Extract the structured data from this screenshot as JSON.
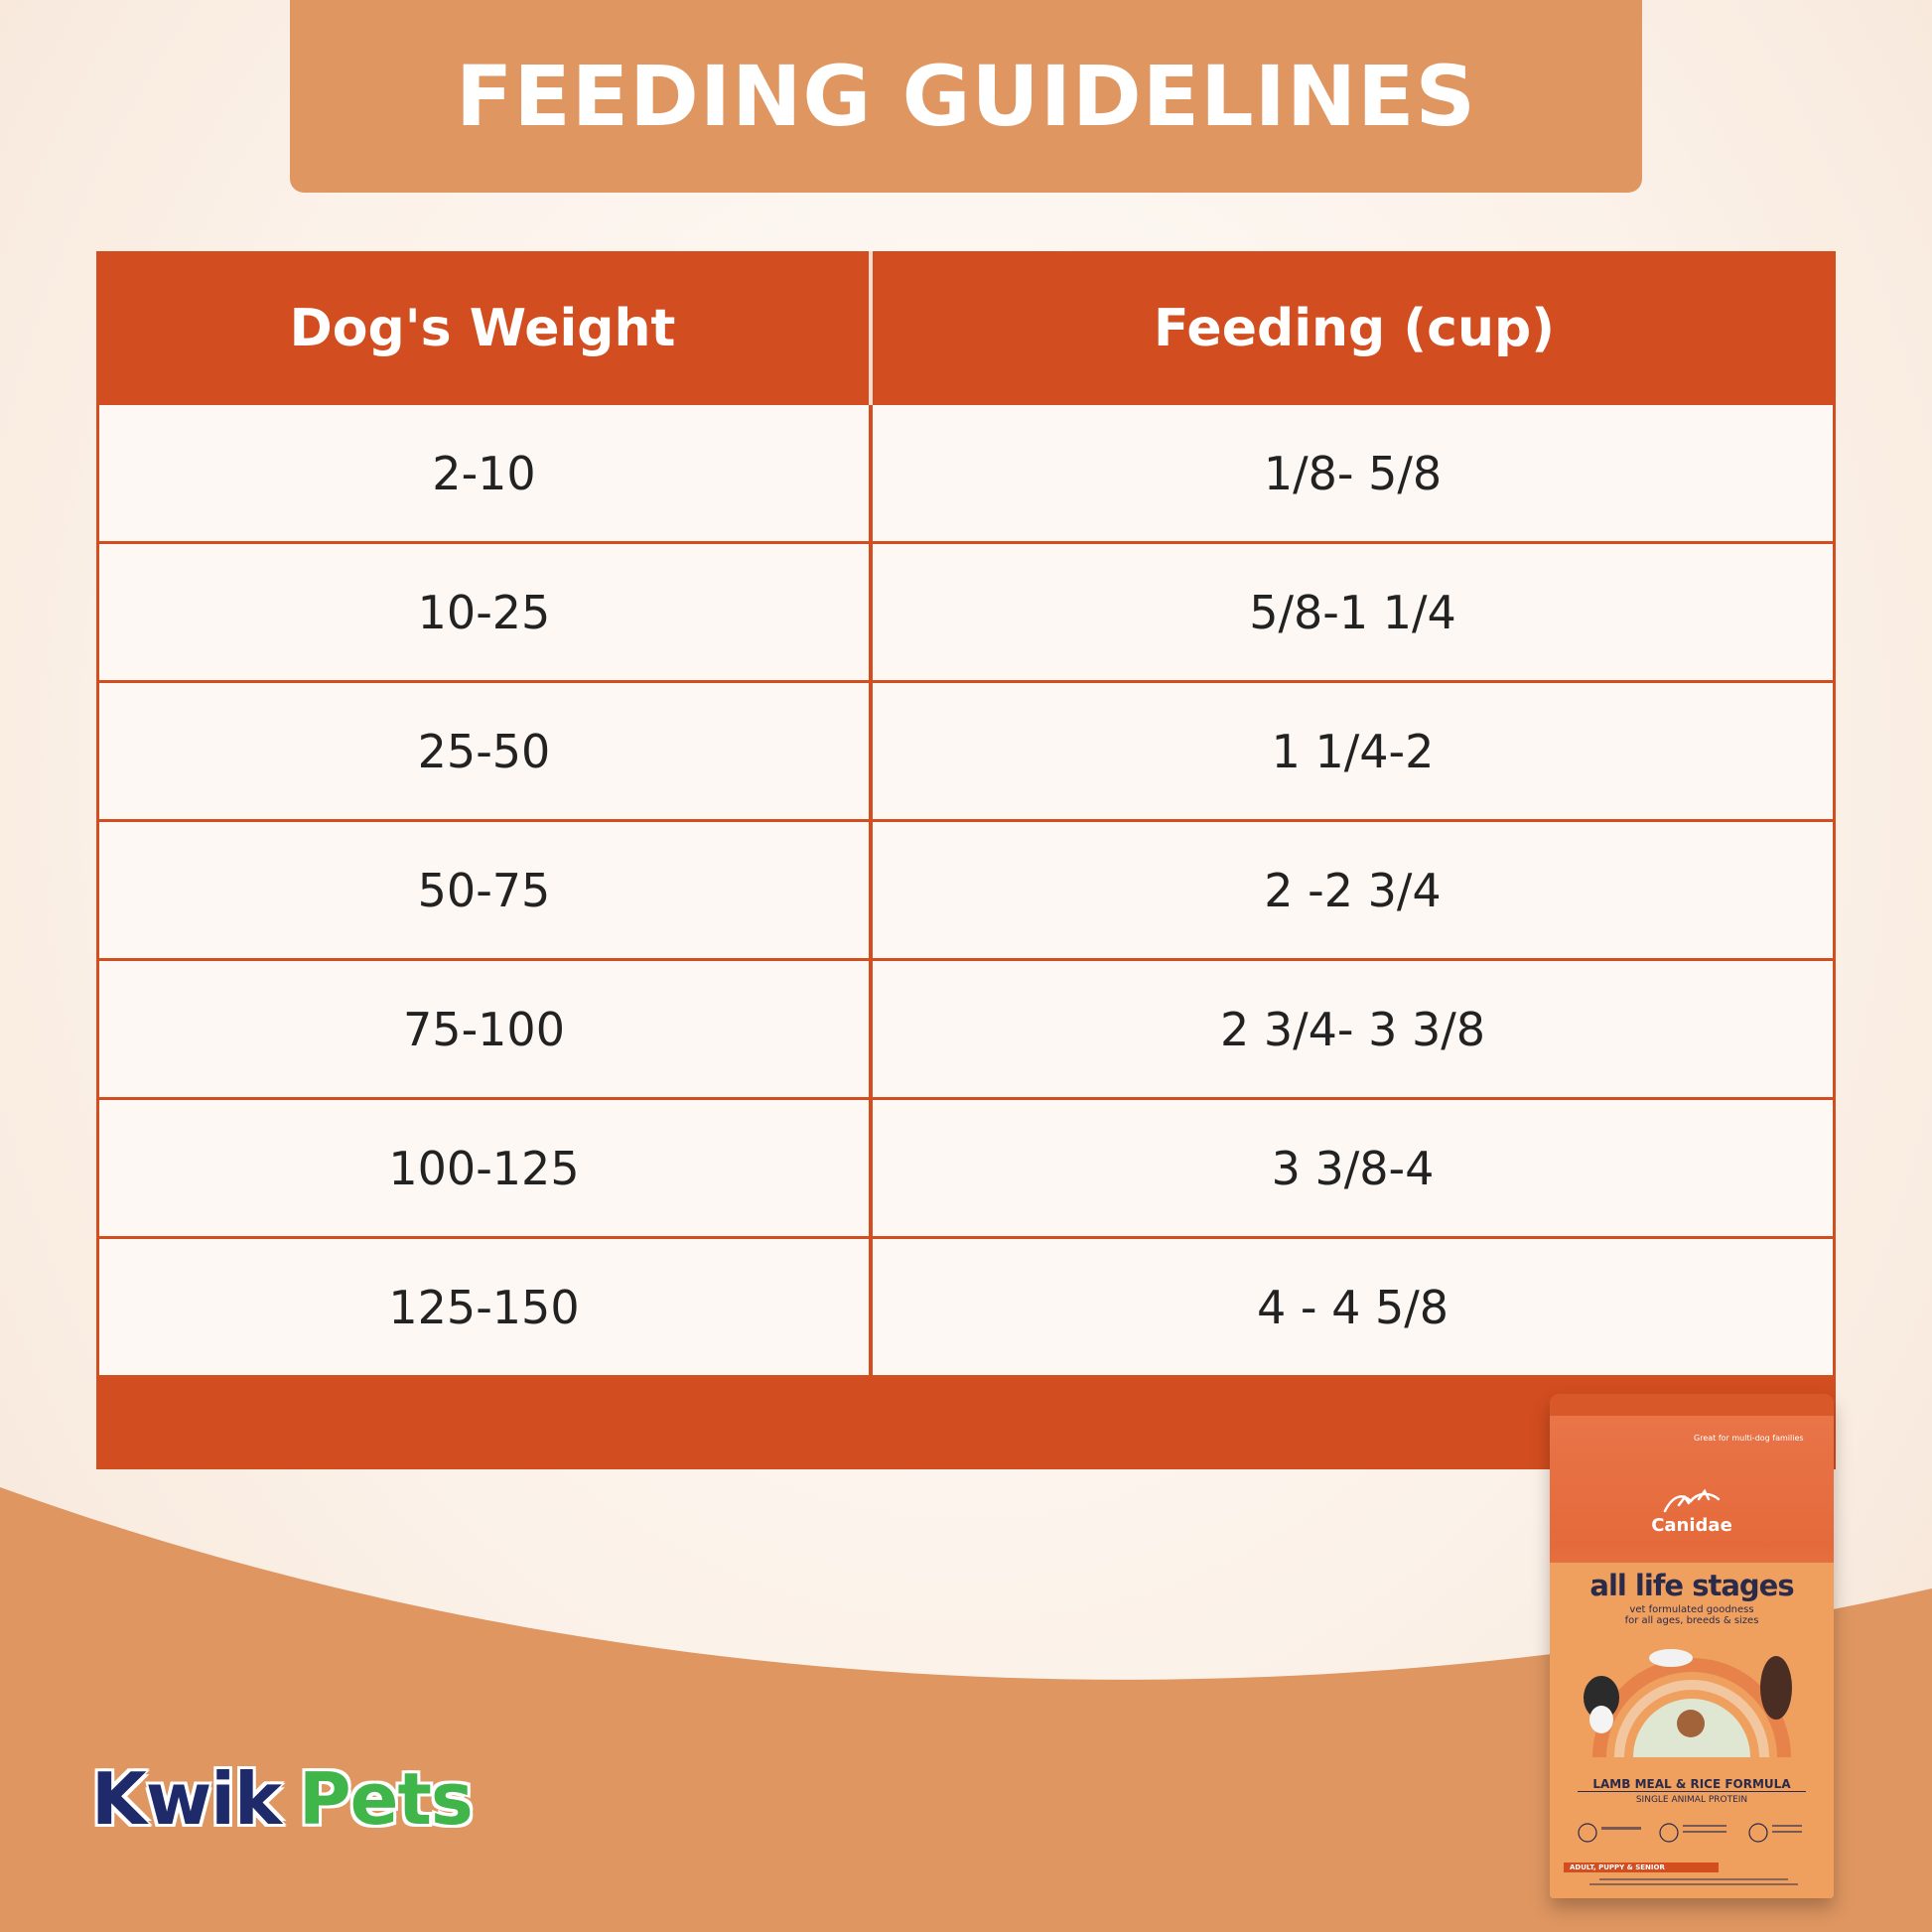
{
  "title": "FEEDING GUIDELINES",
  "table": {
    "headers": [
      "Dog's Weight",
      "Feeding (cup)"
    ],
    "rows": [
      [
        "2-10",
        "1/8- 5/8"
      ],
      [
        "10-25",
        "5/8-1 1/4"
      ],
      [
        "25-50",
        "1 1/4-2"
      ],
      [
        "50-75",
        "2 -2 3/4"
      ],
      [
        "75-100",
        "2 3/4- 3 3/8"
      ],
      [
        "100-125",
        "3 3/8-4"
      ],
      [
        "125-150",
        "4 - 4 5/8"
      ]
    ]
  },
  "logo": {
    "part1": "Kwik",
    "part2": "Pets"
  },
  "product": {
    "tagline": "Great for multi-dog families",
    "brand": "Canidae",
    "headline": "all life stages",
    "sub_line1": "vet formulated goodness",
    "sub_line2": "for all ages, breeds & sizes",
    "formula": "LAMB MEAL & RICE FORMULA",
    "protein": "SINGLE ANIMAL PROTEIN",
    "stage": "ADULT, PUPPY & SENIOR"
  },
  "colors": {
    "accent": "#d24d1f",
    "banner": "#df9661",
    "wave": "#df9661",
    "cell_bg": "#fdf8f4",
    "logo_blue": "#1f2a6b",
    "logo_green": "#3fb54a"
  }
}
